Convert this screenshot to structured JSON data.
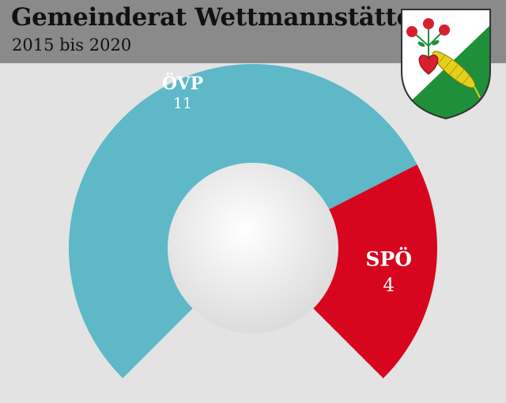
{
  "header": {
    "title": "Gemeinderat Wettmannstätten",
    "subtitle": "2015 bis 2020"
  },
  "crest": {
    "icon": "municipal-coat-of-arms-icon",
    "colors": {
      "green": "#1f8f3a",
      "white": "#ffffff",
      "red": "#d7202f",
      "corn": "#e4d21a"
    }
  },
  "chart_data": {
    "type": "pie",
    "style": "partial-donut",
    "title": "Gemeinderat Wettmannstätten",
    "subtitle": "2015 bis 2020",
    "total_seats": 15,
    "categories": [
      "ÖVP",
      "SPÖ"
    ],
    "values": [
      11,
      4
    ],
    "series": [
      {
        "name": "ÖVP",
        "value": 11,
        "label": "11",
        "color": "#5eb8c8"
      },
      {
        "name": "SPÖ",
        "value": 4,
        "label": "4",
        "color": "#d7061e"
      }
    ]
  }
}
